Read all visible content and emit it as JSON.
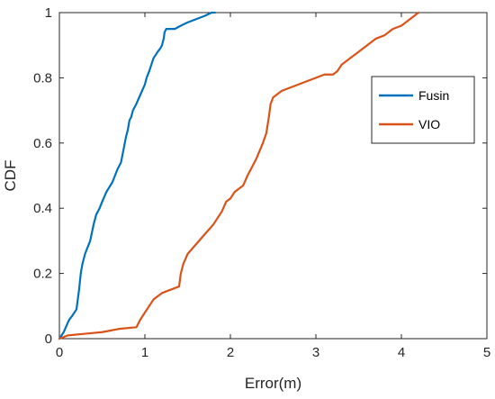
{
  "chart_data": {
    "type": "line",
    "title": "",
    "xlabel": "Error(m)",
    "ylabel": "CDF",
    "xlim": [
      0,
      5
    ],
    "ylim": [
      0,
      1
    ],
    "xticks": [
      "0",
      "1",
      "2",
      "3",
      "4",
      "5"
    ],
    "yticks": [
      "0",
      "0.2",
      "0.4",
      "0.6",
      "0.8",
      "1"
    ],
    "grid": false,
    "legend": "right",
    "series": [
      {
        "name": "Fusin",
        "color": "#0072BD",
        "x": [
          0.0,
          0.05,
          0.1,
          0.12,
          0.15,
          0.2,
          0.23,
          0.25,
          0.27,
          0.3,
          0.33,
          0.36,
          0.4,
          0.43,
          0.47,
          0.5,
          0.55,
          0.62,
          0.68,
          0.72,
          0.75,
          0.78,
          0.8,
          0.82,
          0.84,
          0.86,
          0.9,
          0.95,
          1.0,
          1.02,
          1.05,
          1.1,
          1.15,
          1.18,
          1.2,
          1.22,
          1.23,
          1.25,
          1.3,
          1.35,
          1.42,
          1.5,
          1.6,
          1.7,
          1.78,
          1.82
        ],
        "y": [
          0.0,
          0.02,
          0.05,
          0.06,
          0.07,
          0.09,
          0.15,
          0.2,
          0.23,
          0.26,
          0.28,
          0.3,
          0.35,
          0.38,
          0.4,
          0.42,
          0.45,
          0.48,
          0.52,
          0.54,
          0.58,
          0.62,
          0.64,
          0.67,
          0.68,
          0.7,
          0.72,
          0.75,
          0.78,
          0.8,
          0.82,
          0.86,
          0.88,
          0.89,
          0.9,
          0.92,
          0.94,
          0.95,
          0.95,
          0.95,
          0.96,
          0.97,
          0.98,
          0.99,
          1.0,
          1.0
        ]
      },
      {
        "name": "VIO",
        "color": "#D95319",
        "x": [
          0.0,
          0.1,
          0.3,
          0.5,
          0.7,
          0.9,
          0.95,
          1.0,
          1.05,
          1.1,
          1.2,
          1.3,
          1.4,
          1.42,
          1.45,
          1.5,
          1.6,
          1.7,
          1.8,
          1.9,
          1.95,
          2.0,
          2.05,
          2.1,
          2.15,
          2.2,
          2.3,
          2.38,
          2.42,
          2.45,
          2.47,
          2.5,
          2.55,
          2.6,
          2.7,
          2.8,
          2.9,
          3.0,
          3.1,
          3.2,
          3.25,
          3.3,
          3.4,
          3.5,
          3.6,
          3.7,
          3.8,
          3.9,
          4.0,
          4.05,
          4.1,
          4.15,
          4.2
        ],
        "y": [
          0.0,
          0.01,
          0.015,
          0.02,
          0.03,
          0.035,
          0.06,
          0.08,
          0.1,
          0.12,
          0.14,
          0.15,
          0.16,
          0.2,
          0.23,
          0.26,
          0.29,
          0.32,
          0.35,
          0.39,
          0.42,
          0.43,
          0.45,
          0.46,
          0.47,
          0.5,
          0.55,
          0.6,
          0.63,
          0.68,
          0.72,
          0.74,
          0.75,
          0.76,
          0.77,
          0.78,
          0.79,
          0.8,
          0.81,
          0.81,
          0.82,
          0.84,
          0.86,
          0.88,
          0.9,
          0.92,
          0.93,
          0.95,
          0.96,
          0.97,
          0.98,
          0.99,
          1.0
        ]
      }
    ]
  }
}
